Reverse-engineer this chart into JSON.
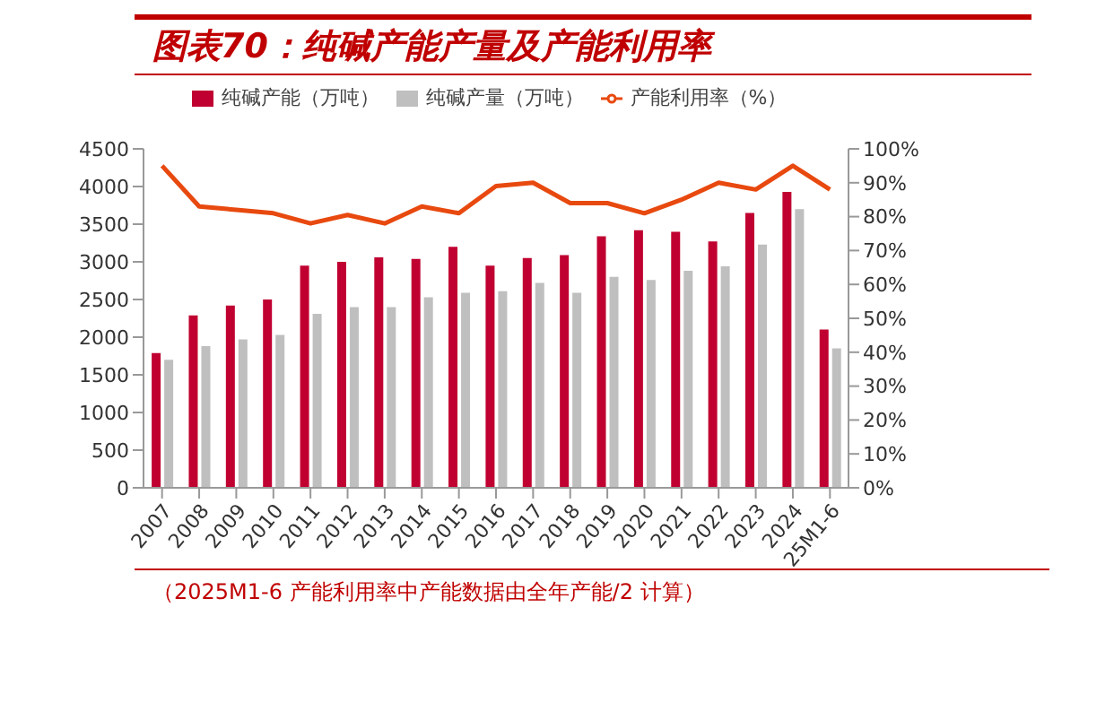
{
  "chart_data": {
    "type": "bar",
    "title": "图表70：纯碱产能产量及产能利用率",
    "annotations": [
      "（2025M1-6 产能利用率中产能数据由全年产能/2 计算）"
    ],
    "categories": [
      "2007",
      "2008",
      "2009",
      "2010",
      "2011",
      "2012",
      "2013",
      "2014",
      "2015",
      "2016",
      "2017",
      "2018",
      "2019",
      "2020",
      "2021",
      "2022",
      "2023",
      "2024",
      "25M1-6"
    ],
    "series": [
      {
        "name": "纯碱产能（万吨）",
        "color": "#c00030",
        "values": [
          1790,
          2290,
          2420,
          2500,
          2950,
          3000,
          3060,
          3040,
          3200,
          2950,
          3050,
          3090,
          3340,
          3420,
          3400,
          3270,
          3650,
          3930,
          2100
        ]
      },
      {
        "name": "纯碱产量（万吨）",
        "color": "#bfbfbf",
        "values": [
          1700,
          1880,
          1970,
          2030,
          2310,
          2400,
          2400,
          2530,
          2590,
          2610,
          2720,
          2590,
          2800,
          2760,
          2880,
          2940,
          3230,
          3700,
          1850
        ]
      },
      {
        "name": "产能利用率（%）",
        "type": "line",
        "axis": "y2",
        "color": "#e8490f",
        "values": [
          95,
          83,
          82,
          81,
          78,
          80.5,
          78,
          83,
          81,
          89,
          90,
          84,
          84,
          81,
          85,
          90,
          88,
          95,
          88
        ]
      }
    ],
    "ylim": [
      0,
      4500
    ],
    "yticks": [
      0,
      500,
      1000,
      1500,
      2000,
      2500,
      3000,
      3500,
      4000,
      4500
    ],
    "y2lim": [
      0,
      100
    ],
    "y2ticks": [
      {
        "value": 0,
        "label": "0%"
      },
      {
        "value": 10,
        "label": "10%"
      },
      {
        "value": 20,
        "label": "20%"
      },
      {
        "value": 30,
        "label": "30%"
      },
      {
        "value": 40,
        "label": "40%"
      },
      {
        "value": 50,
        "label": "50%"
      },
      {
        "value": 60,
        "label": "60%"
      },
      {
        "value": 70,
        "label": "70%"
      },
      {
        "value": 80,
        "label": "80%"
      },
      {
        "value": 90,
        "label": "90%"
      },
      {
        "value": 100,
        "label": "100%"
      }
    ],
    "grid": false,
    "legend": "top",
    "marker": "none",
    "line_style": "solid"
  }
}
